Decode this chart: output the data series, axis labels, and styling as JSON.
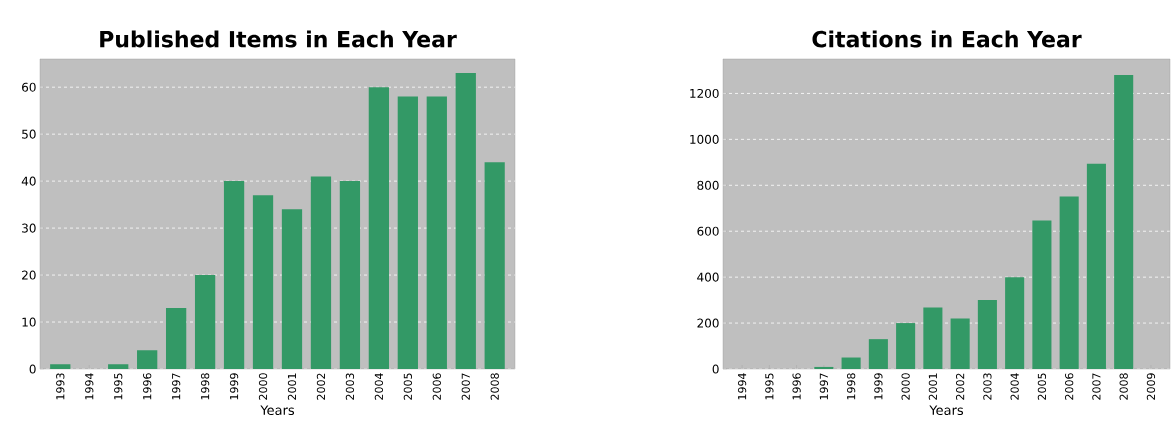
{
  "chart_data": [
    {
      "type": "bar",
      "title": "Published Items in Each Year",
      "xlabel": "Years",
      "categories": [
        "1993",
        "1994",
        "1995",
        "1996",
        "1997",
        "1998",
        "1999",
        "2000",
        "2001",
        "2002",
        "2003",
        "2004",
        "2005",
        "2006",
        "2007",
        "2008"
      ],
      "values": [
        1,
        0,
        1,
        4,
        13,
        20,
        40,
        37,
        34,
        41,
        40,
        60,
        58,
        58,
        63,
        44
      ],
      "color": "#339966",
      "ylim": [
        0,
        66
      ],
      "yticks": [
        0,
        10,
        20,
        30,
        40,
        50,
        60
      ],
      "grid": "y"
    },
    {
      "type": "bar",
      "title": "Citations in Each Year",
      "xlabel": "Years",
      "categories": [
        "1994",
        "1995",
        "1996",
        "1997",
        "1998",
        "1999",
        "2000",
        "2001",
        "2002",
        "2003",
        "2004",
        "2005",
        "2006",
        "2007",
        "2008",
        "2009"
      ],
      "values": [
        0,
        0,
        0,
        9,
        50,
        130,
        200,
        268,
        220,
        300,
        400,
        647,
        751,
        894,
        1280,
        0
      ],
      "color": "#339966",
      "ylim": [
        0,
        1350
      ],
      "yticks": [
        0,
        200,
        400,
        600,
        800,
        1000,
        1200
      ],
      "grid": "y"
    }
  ]
}
